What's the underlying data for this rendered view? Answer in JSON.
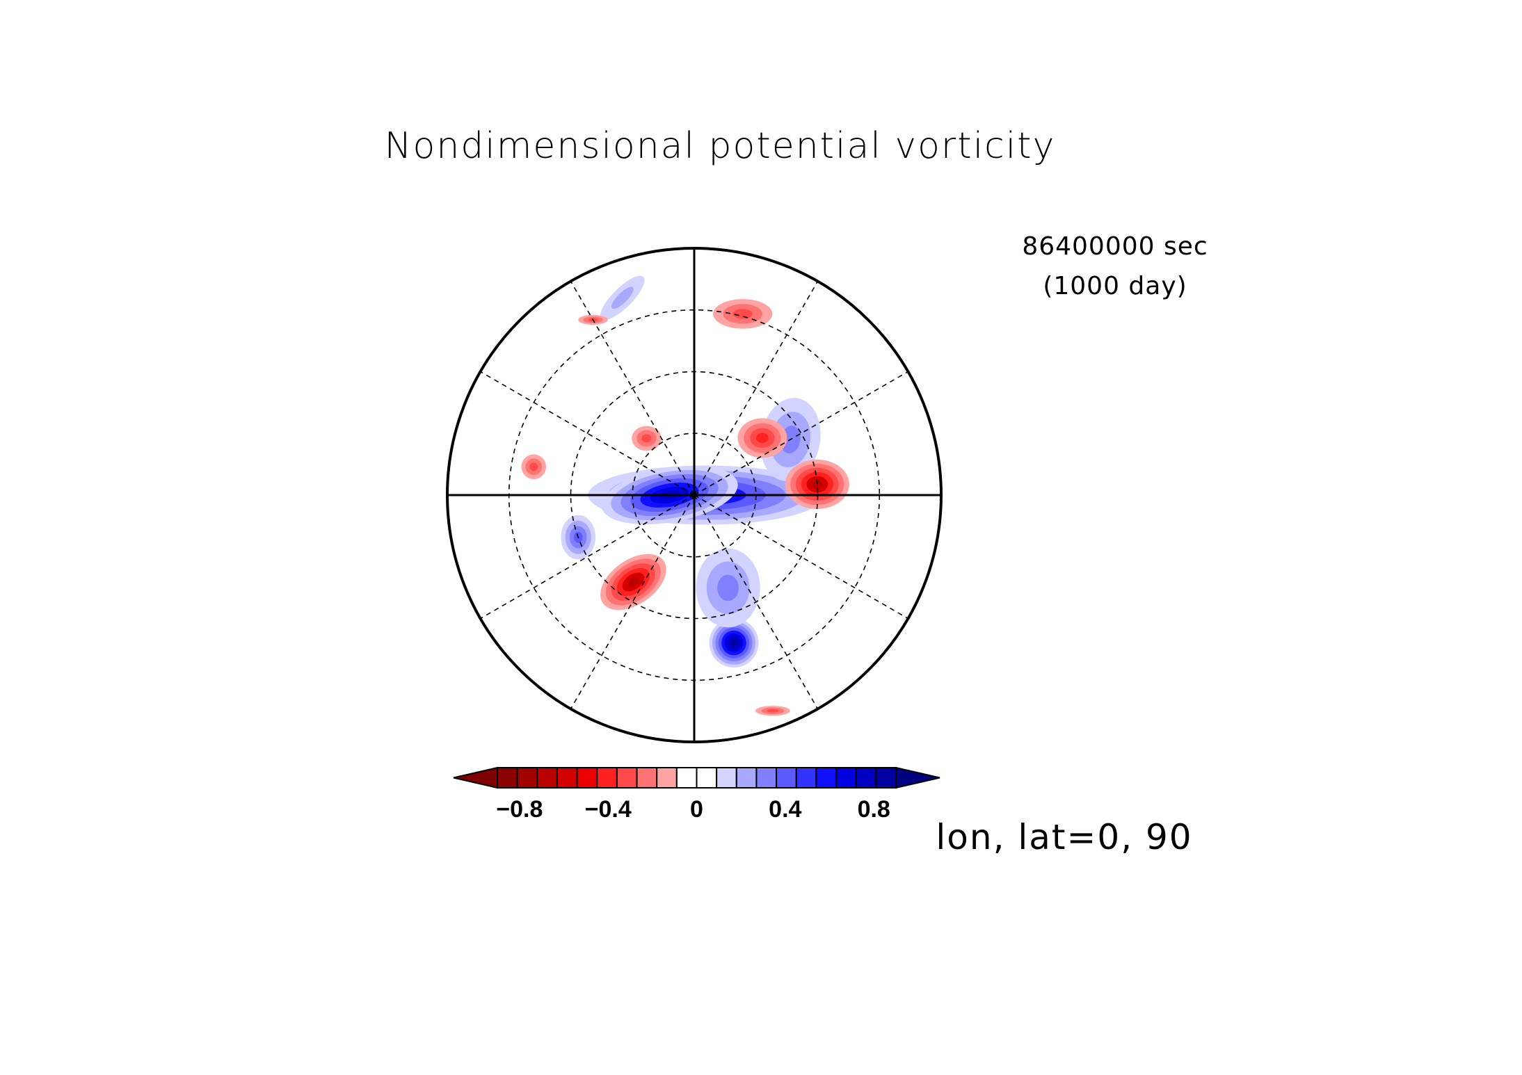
{
  "figure": {
    "title": "Nondimensional potential vorticity",
    "time_seconds": "86400000 sec",
    "time_days": "(1000 day)",
    "projection_label": "lon, lat=0, 90"
  },
  "chart_data": {
    "type": "heatmap",
    "title": "Nondimensional potential vorticity",
    "projection": "polar stereographic, north pole centered",
    "map_center": {
      "lon": 0,
      "lat": 90
    },
    "grid": true,
    "meridians_deg": [
      0,
      30,
      60,
      90,
      120,
      150,
      180,
      210,
      240,
      270,
      300,
      330
    ],
    "parallel_circles": 3,
    "colorbar": {
      "orientation": "horizontal",
      "placement": "bottom",
      "extend": "both",
      "range": [
        -1.0,
        1.0
      ],
      "interval": 0.1,
      "tick_values": [
        -0.8,
        -0.4,
        0,
        0.4,
        0.8
      ],
      "tick_labels": [
        "−0.8",
        "−0.4",
        "0",
        "0.4",
        "0.8"
      ],
      "colors": [
        "#7f0000",
        "#8b0000",
        "#a30000",
        "#bb0000",
        "#d40000",
        "#ee0000",
        "#ff2020",
        "#ff4a4a",
        "#ff7373",
        "#ffa3a3",
        "#ffffff",
        "#ffffff",
        "#d3d3ff",
        "#a8a8ff",
        "#8080ff",
        "#5a5aff",
        "#3333ff",
        "#1010ff",
        "#0000e0",
        "#0000c0",
        "#0000a0",
        "#000080"
      ]
    },
    "features": [
      {
        "kind": "positive",
        "lon": 90,
        "r": 0.05,
        "rx": 0.48,
        "ry": 0.12,
        "rot": 0,
        "value": 0.6
      },
      {
        "kind": "positive",
        "lon": 270,
        "r": 0.1,
        "rx": 0.28,
        "ry": 0.11,
        "rot": -10,
        "value": 0.7
      },
      {
        "kind": "positive",
        "lon": 15,
        "r": 0.62,
        "rx": 0.1,
        "ry": 0.1,
        "rot": 0,
        "value": 0.8
      },
      {
        "kind": "positive",
        "lon": 120,
        "r": 0.45,
        "rx": 0.12,
        "ry": 0.17,
        "rot": 10,
        "value": 0.3
      },
      {
        "kind": "positive",
        "lon": 290,
        "r": 0.5,
        "rx": 0.07,
        "ry": 0.09,
        "rot": 0,
        "value": 0.4
      },
      {
        "kind": "positive",
        "lon": 20,
        "r": 0.4,
        "rx": 0.13,
        "ry": 0.16,
        "rot": 0,
        "value": 0.3
      },
      {
        "kind": "positive",
        "lon": 200,
        "r": 0.85,
        "rx": 0.12,
        "ry": 0.04,
        "rot": -45,
        "value": 0.2
      },
      {
        "kind": "negative",
        "lon": 95,
        "r": 0.5,
        "rx": 0.13,
        "ry": 0.1,
        "rot": 0,
        "value": -0.6
      },
      {
        "kind": "negative",
        "lon": 325,
        "r": 0.43,
        "rx": 0.15,
        "ry": 0.09,
        "rot": -35,
        "value": -0.6
      },
      {
        "kind": "negative",
        "lon": 130,
        "r": 0.36,
        "rx": 0.1,
        "ry": 0.08,
        "rot": 0,
        "value": -0.4
      },
      {
        "kind": "negative",
        "lon": 220,
        "r": 0.3,
        "rx": 0.06,
        "ry": 0.05,
        "rot": 0,
        "value": -0.3
      },
      {
        "kind": "negative",
        "lon": 260,
        "r": 0.66,
        "rx": 0.05,
        "ry": 0.05,
        "rot": 0,
        "value": -0.3
      },
      {
        "kind": "negative",
        "lon": 165,
        "r": 0.76,
        "rx": 0.12,
        "ry": 0.06,
        "rot": 0,
        "value": -0.3
      },
      {
        "kind": "negative",
        "lon": 20,
        "r": 0.93,
        "rx": 0.07,
        "ry": 0.02,
        "rot": 0,
        "value": -0.3
      },
      {
        "kind": "negative",
        "lon": 210,
        "r": 0.82,
        "rx": 0.06,
        "ry": 0.02,
        "rot": 0,
        "value": -0.3
      }
    ]
  }
}
